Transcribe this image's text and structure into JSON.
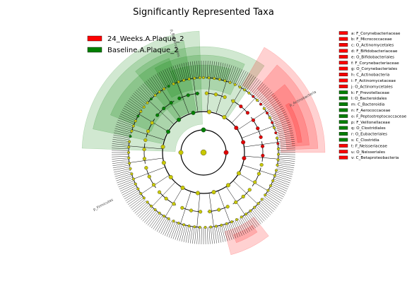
{
  "chart_data": {
    "type": "cladogram",
    "title": "Significantly Represented Taxa",
    "legend_position": "top-left",
    "groups": [
      {
        "name": "24_Weeks.A.Plaque_2",
        "color": "#ff0000"
      },
      {
        "name": "Baseline.A.Plaque_2",
        "color": "#008000"
      }
    ],
    "taxa_key_position": "right",
    "taxa_key": [
      {
        "letter": "a",
        "taxon": "F_Corynebacteriaceae",
        "group": 0
      },
      {
        "letter": "b",
        "taxon": "F_Micrococcaceae",
        "group": 0
      },
      {
        "letter": "c",
        "taxon": "O_Actinomycetales",
        "group": 0
      },
      {
        "letter": "d",
        "taxon": "F_Bifidobacteriaceae",
        "group": 0
      },
      {
        "letter": "e",
        "taxon": "O_Bifidobacteriales",
        "group": 0
      },
      {
        "letter": "f",
        "taxon": "F_Corynebacteriaceae",
        "group": 0
      },
      {
        "letter": "g",
        "taxon": "O_Corynebacteriales",
        "group": 0
      },
      {
        "letter": "h",
        "taxon": "C_Actinobacteria",
        "group": 0
      },
      {
        "letter": "i",
        "taxon": "F_Actinomycetaceae",
        "group": 0
      },
      {
        "letter": "j",
        "taxon": "O_Actinomycetales",
        "group": 0
      },
      {
        "letter": "k",
        "taxon": "F_Prevotellaceae",
        "group": 1
      },
      {
        "letter": "l",
        "taxon": "O_Bacteroidales",
        "group": 1
      },
      {
        "letter": "m",
        "taxon": "C_Bacteroidia",
        "group": 1
      },
      {
        "letter": "n",
        "taxon": "F_Aerococcaceae",
        "group": 1
      },
      {
        "letter": "o",
        "taxon": "F_Peptostreptococcaceae",
        "group": 1
      },
      {
        "letter": "p",
        "taxon": "F_Veillonellaceae",
        "group": 1
      },
      {
        "letter": "q",
        "taxon": "O_Clostridiales",
        "group": 1
      },
      {
        "letter": "r",
        "taxon": "O_Eubacteriales",
        "group": 1
      },
      {
        "letter": "s",
        "taxon": "C_Clostridia",
        "group": 1
      },
      {
        "letter": "t",
        "taxon": "F_Neisseriaceae",
        "group": 0
      },
      {
        "letter": "u",
        "taxon": "O_Neisseriales",
        "group": 0
      },
      {
        "letter": "v",
        "taxon": "C_Betaproteobacteria",
        "group": 0
      }
    ],
    "clade_labels": [
      {
        "text": "p_Bacteroidetes",
        "group": 1
      },
      {
        "text": "p_Actinobacteria",
        "group": 0
      },
      {
        "text": "p_Firmicutes",
        "group": 1
      }
    ]
  }
}
